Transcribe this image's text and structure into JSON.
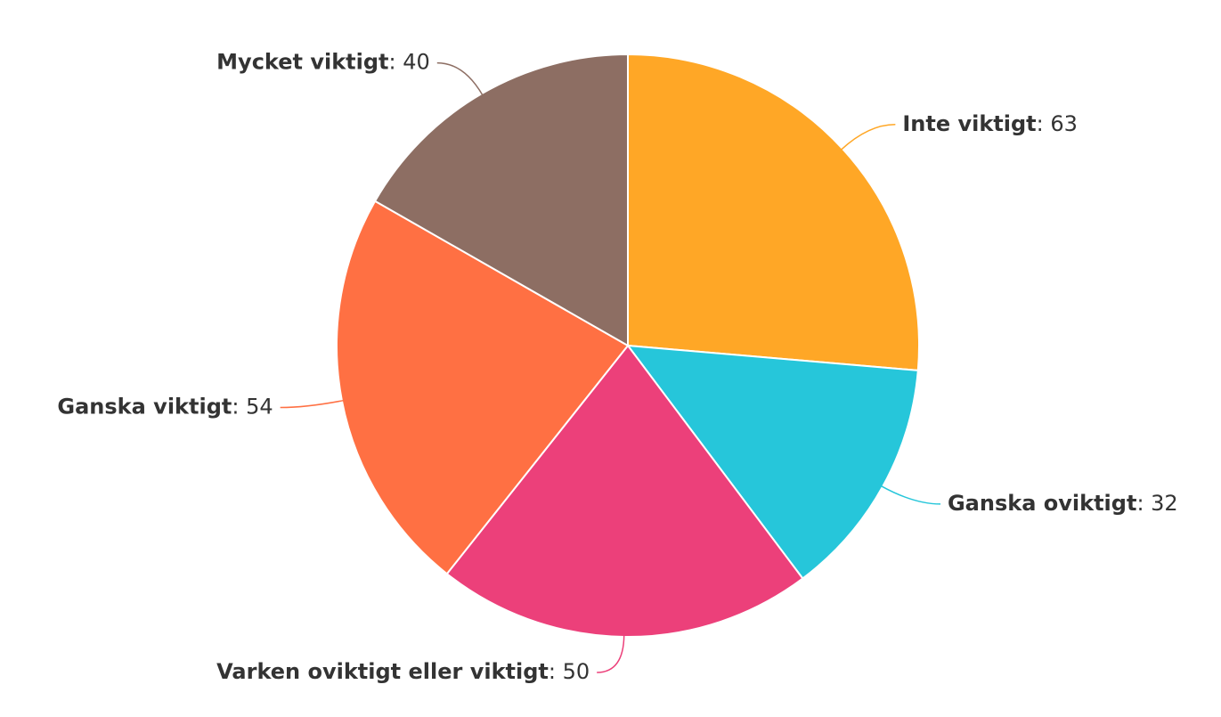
{
  "chart_data": {
    "type": "pie",
    "categories": [
      "Inte viktigt",
      "Ganska oviktigt",
      "Varken oviktigt eller viktigt",
      "Ganska viktigt",
      "Mycket viktigt"
    ],
    "values": [
      63,
      32,
      50,
      54,
      40
    ],
    "colors": [
      "#ffa726",
      "#26c6da",
      "#ec407a",
      "#ff7043",
      "#8d6e63"
    ]
  }
}
